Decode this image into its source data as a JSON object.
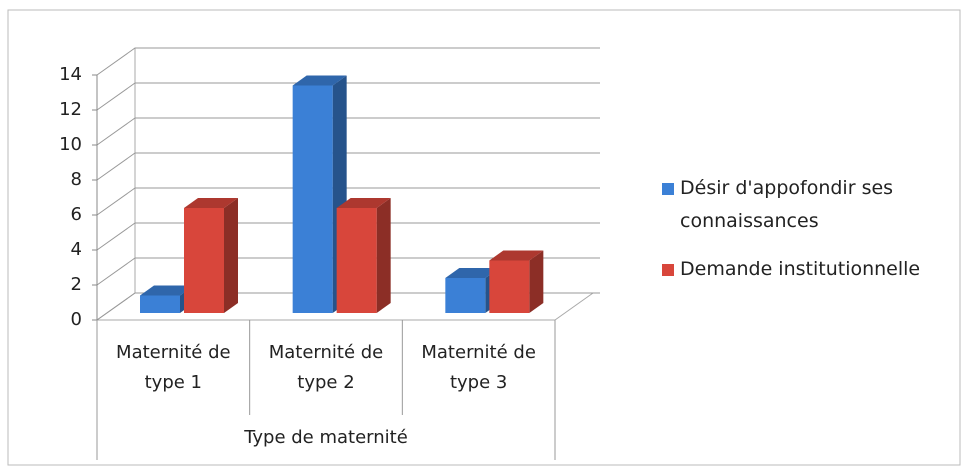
{
  "chart_data": {
    "type": "bar3d",
    "categories": [
      "Maternité de type 1",
      "Maternité de type 2",
      "Maternité de type 3"
    ],
    "x_label": "Type de maternité",
    "series": [
      {
        "name": "Désir d'appofondir ses connaissances",
        "color": "#3b80d6",
        "values": [
          1,
          13,
          2
        ]
      },
      {
        "name": "Demande institutionnelle",
        "color": "#d8463b",
        "values": [
          6,
          6,
          3
        ]
      }
    ],
    "ylim": [
      0,
      14
    ],
    "yticks": [
      0,
      2,
      4,
      6,
      8,
      10,
      12,
      14
    ],
    "grid": true,
    "legend": "right"
  }
}
